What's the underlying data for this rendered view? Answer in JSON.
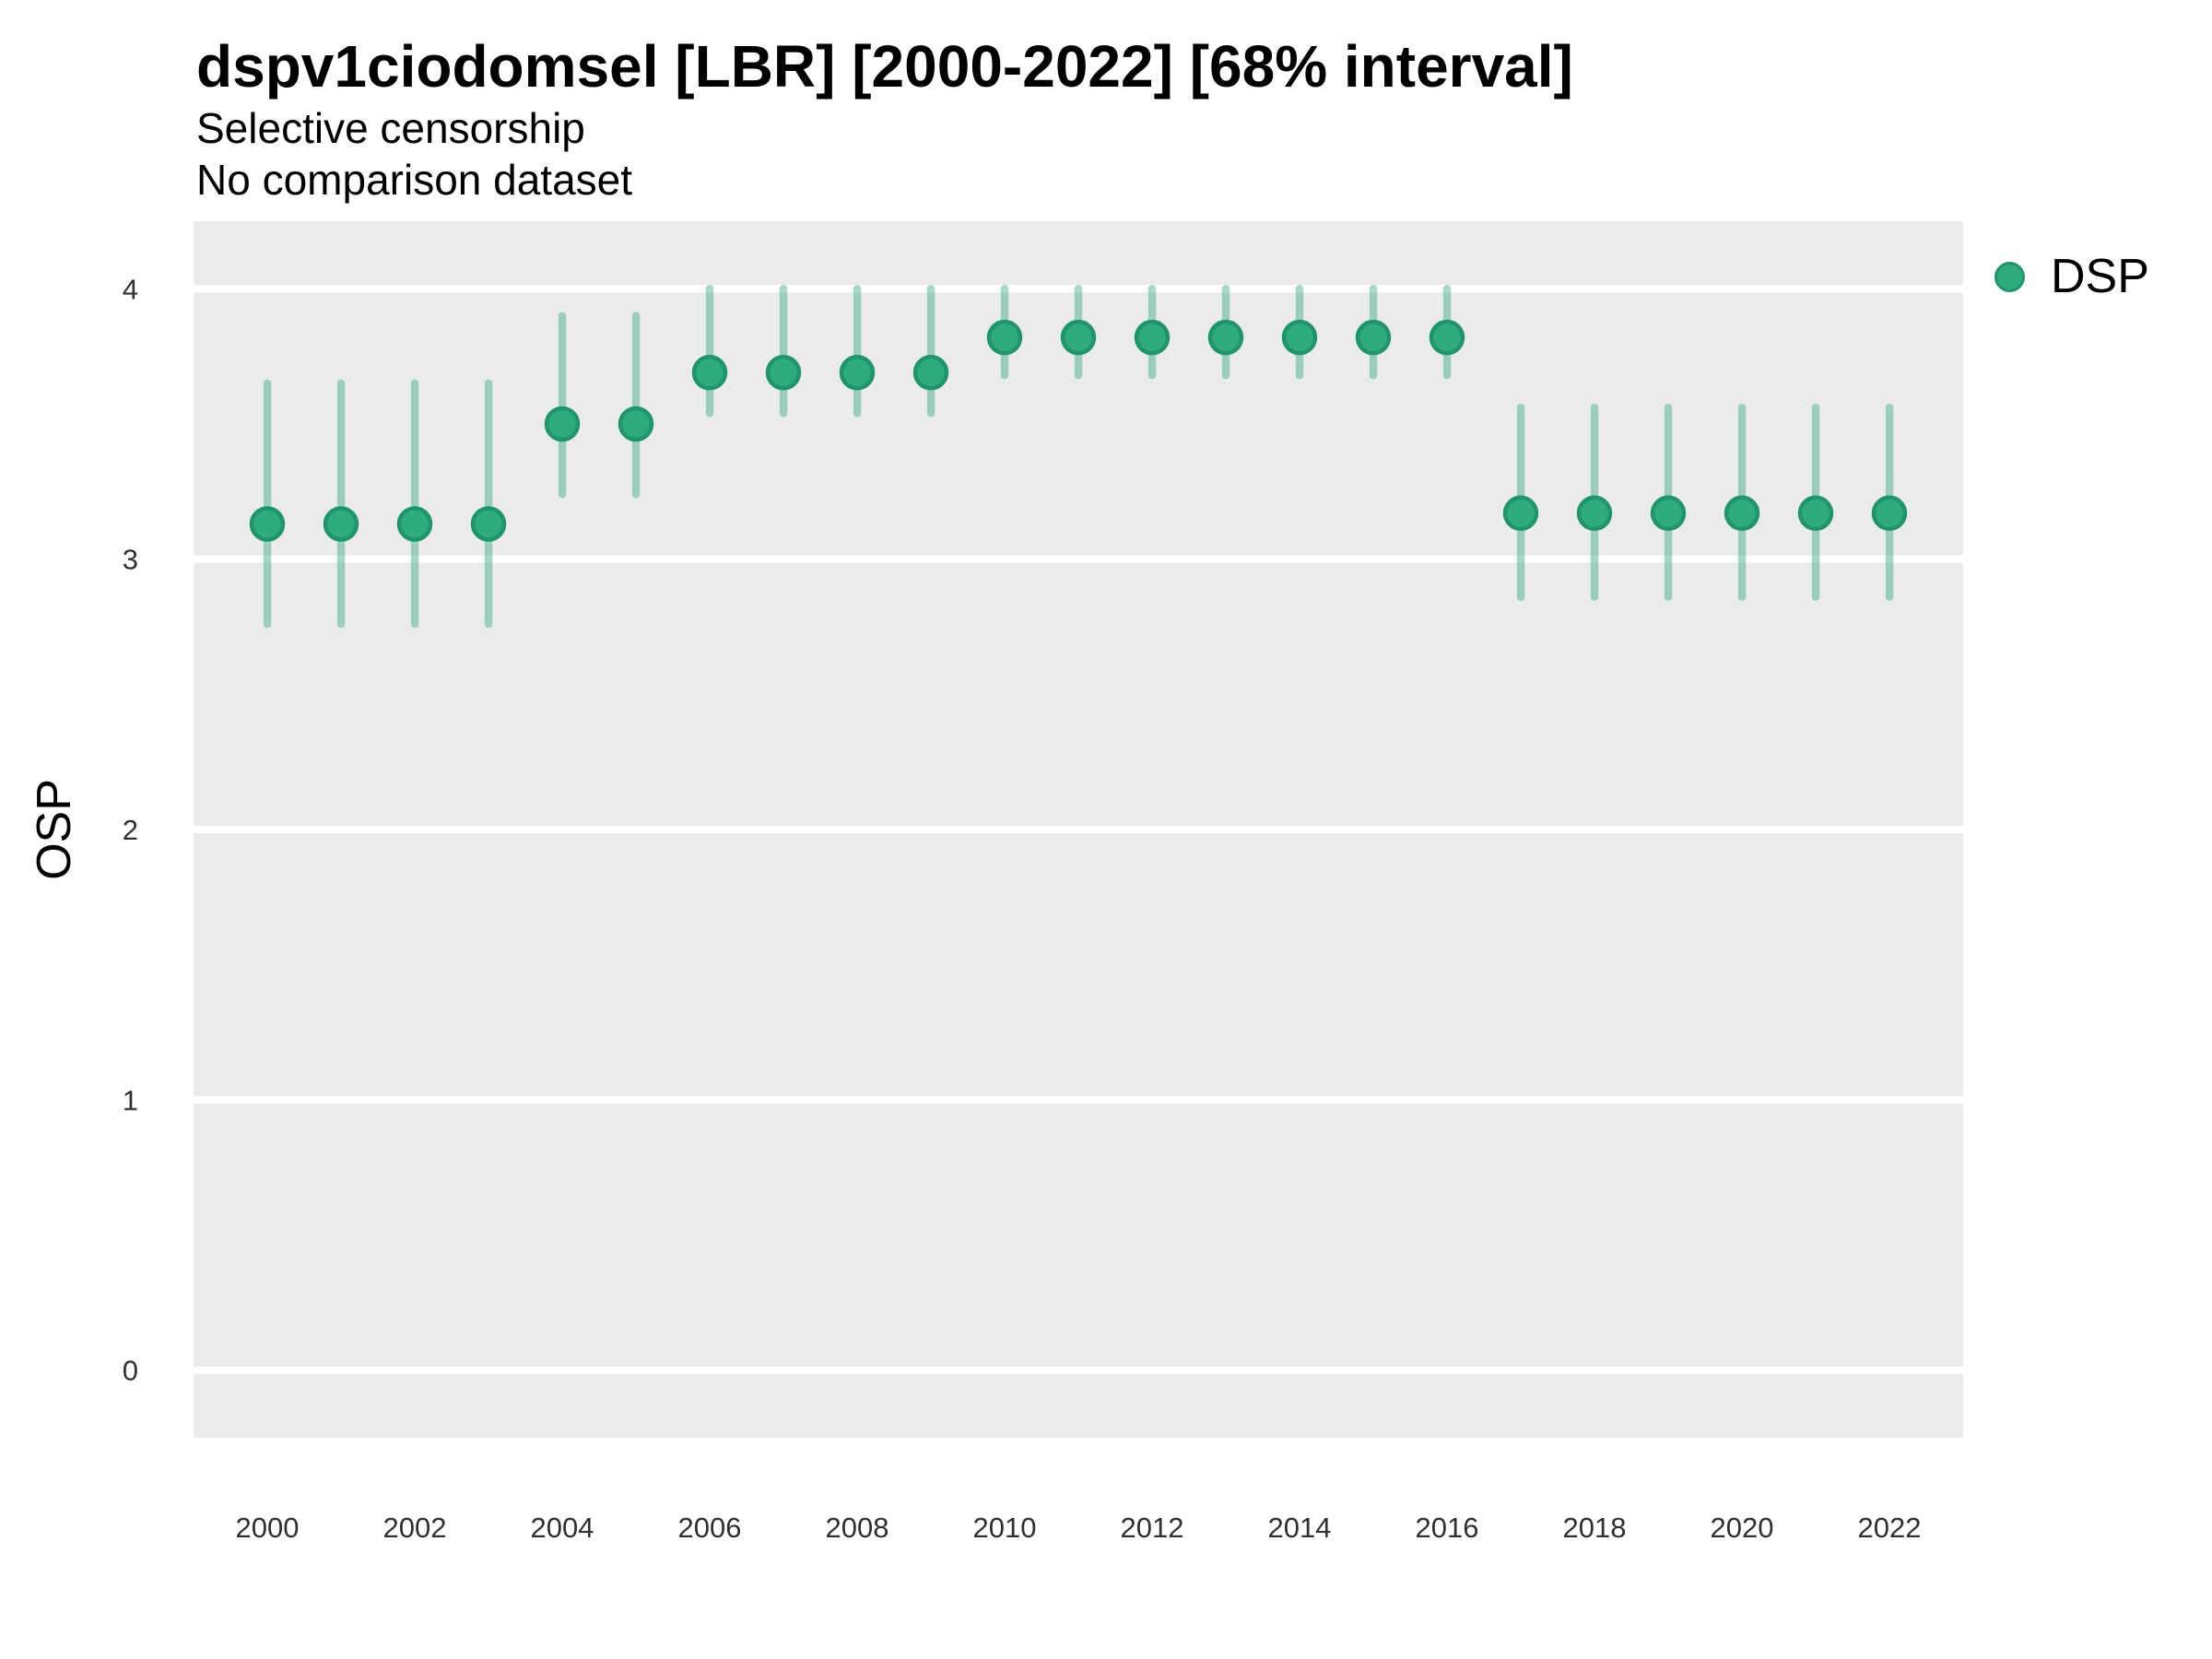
{
  "header": {
    "title": "dspv1ciodomsel [LBR] [2000-2022] [68% interval]",
    "subtitle_line1": "Selective censorship",
    "subtitle_line2": "No comparison dataset"
  },
  "axes": {
    "y_label": "OSP",
    "y_ticks": [
      0,
      1,
      2,
      3,
      4
    ],
    "x_ticks": [
      2000,
      2002,
      2004,
      2006,
      2008,
      2010,
      2012,
      2014,
      2016,
      2018,
      2020,
      2022
    ]
  },
  "legend": {
    "label": "DSP"
  },
  "chart_data": {
    "type": "scatter",
    "subtype": "pointrange (point estimate with 68% interval bars)",
    "title": "dspv1ciodomsel [LBR] [2000-2022] [68% interval]",
    "subtitle": [
      "Selective censorship",
      "No comparison dataset"
    ],
    "interval": "68%",
    "xlabel": "",
    "ylabel": "OSP",
    "xlim": [
      1999,
      2023
    ],
    "ylim": [
      -0.25,
      4.25
    ],
    "grid": "horizontal major gridlines only, white on gray panel",
    "legend_position": "right-top",
    "series": [
      {
        "name": "DSP",
        "x": [
          2000,
          2001,
          2002,
          2003,
          2004,
          2005,
          2006,
          2007,
          2008,
          2009,
          2010,
          2011,
          2012,
          2013,
          2014,
          2015,
          2016,
          2017,
          2018,
          2019,
          2020,
          2021,
          2022
        ],
        "y": [
          3.13,
          3.13,
          3.13,
          3.13,
          3.5,
          3.5,
          3.69,
          3.69,
          3.69,
          3.69,
          3.82,
          3.82,
          3.82,
          3.82,
          3.82,
          3.82,
          3.82,
          3.17,
          3.17,
          3.17,
          3.17,
          3.17,
          3.17
        ],
        "lower": [
          2.76,
          2.76,
          2.76,
          2.76,
          3.24,
          3.24,
          3.54,
          3.54,
          3.54,
          3.54,
          3.68,
          3.68,
          3.68,
          3.68,
          3.68,
          3.68,
          3.68,
          2.86,
          2.86,
          2.86,
          2.86,
          2.86,
          2.86
        ],
        "upper": [
          3.65,
          3.65,
          3.65,
          3.65,
          3.9,
          3.9,
          4.0,
          4.0,
          4.0,
          4.0,
          4.0,
          4.0,
          4.0,
          4.0,
          4.0,
          4.0,
          4.0,
          3.56,
          3.56,
          3.56,
          3.56,
          3.56,
          3.56
        ]
      }
    ]
  },
  "style": {
    "panel_bg": "#EBEBEB",
    "grid_color": "#FFFFFF",
    "point_fill": "#2EAC7D",
    "point_stroke": "#1F9669",
    "interval_color": "rgba(46,168,120,0.42)",
    "axis_text_color": "#303030"
  }
}
